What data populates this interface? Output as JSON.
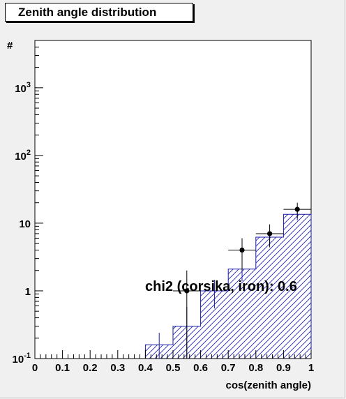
{
  "title": "Zenith angle distribution",
  "chart_data": {
    "type": "histogram",
    "title": "Zenith angle distribution",
    "xlabel": "cos(zenith angle)",
    "ylabel": "#",
    "xlim": [
      0,
      1
    ],
    "ylim": [
      0.1,
      5000
    ],
    "yscale": "log",
    "x_ticks": [
      "0",
      "0.1",
      "0.2",
      "0.3",
      "0.4",
      "0.5",
      "0.6",
      "0.7",
      "0.8",
      "0.9",
      "1"
    ],
    "y_tick_labels": [
      {
        "value": 0.1,
        "base": "10",
        "exp": "-1"
      },
      {
        "value": 1,
        "base": "1",
        "exp": ""
      },
      {
        "value": 10,
        "base": "10",
        "exp": ""
      },
      {
        "value": 100,
        "base": "10",
        "exp": "2"
      },
      {
        "value": 1000,
        "base": "10",
        "exp": "3"
      }
    ],
    "histogram": {
      "bin_edges": [
        0.4,
        0.5,
        0.6,
        0.7,
        0.8,
        0.9,
        1.0
      ],
      "values": [
        0.16,
        0.3,
        1.0,
        2.1,
        6.2,
        13.5
      ],
      "style": "hatched",
      "color": "#1a1aa8"
    },
    "mc_error_bars": [
      {
        "x": 0.45,
        "low": 0.1,
        "high": 0.24
      },
      {
        "x": 0.55,
        "low": 0.1,
        "high": 0.58
      },
      {
        "x": 0.65,
        "low": 0.55,
        "high": 1.45
      },
      {
        "x": 0.75,
        "low": 1.4,
        "high": 2.9
      },
      {
        "x": 0.85,
        "low": 4.9,
        "high": 7.6
      },
      {
        "x": 0.95,
        "low": 11.0,
        "high": 16.5
      }
    ],
    "points": [
      {
        "x": 0.55,
        "y": 1.0,
        "xerr": 0.05,
        "ylow": 0.1,
        "yhigh": 2.0
      },
      {
        "x": 0.75,
        "y": 4.0,
        "xerr": 0.05,
        "ylow": 2.0,
        "yhigh": 6.0
      },
      {
        "x": 0.85,
        "y": 7.0,
        "xerr": 0.05,
        "ylow": 4.4,
        "yhigh": 9.6
      },
      {
        "x": 0.95,
        "y": 16.0,
        "xerr": 0.05,
        "ylow": 12.0,
        "yhigh": 20.0
      }
    ],
    "annotation": "chi2 (corsika, iron): 0.6"
  }
}
